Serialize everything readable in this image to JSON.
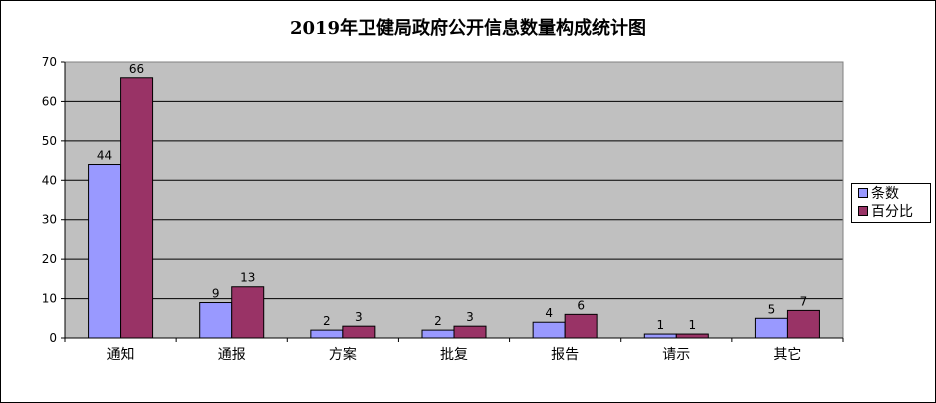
{
  "chart_data": {
    "type": "bar",
    "title": "2019年卫健局政府公开信息数量构成统计图",
    "categories": [
      "通知",
      "通报",
      "方案",
      "批复",
      "报告",
      "请示",
      "其它"
    ],
    "series": [
      {
        "name": "条数",
        "values": [
          44,
          9,
          2,
          2,
          4,
          1,
          5
        ],
        "color": "#9999ff"
      },
      {
        "name": "百分比",
        "values": [
          66,
          13,
          3,
          3,
          6,
          1,
          7
        ],
        "color": "#993366"
      }
    ],
    "ylim": [
      0,
      70
    ],
    "yticks": [
      0,
      10,
      20,
      30,
      40,
      50,
      60,
      70
    ],
    "xlabel": "",
    "ylabel": "",
    "grid": true,
    "legend": "right",
    "plot_background": "#c0c0c0"
  }
}
